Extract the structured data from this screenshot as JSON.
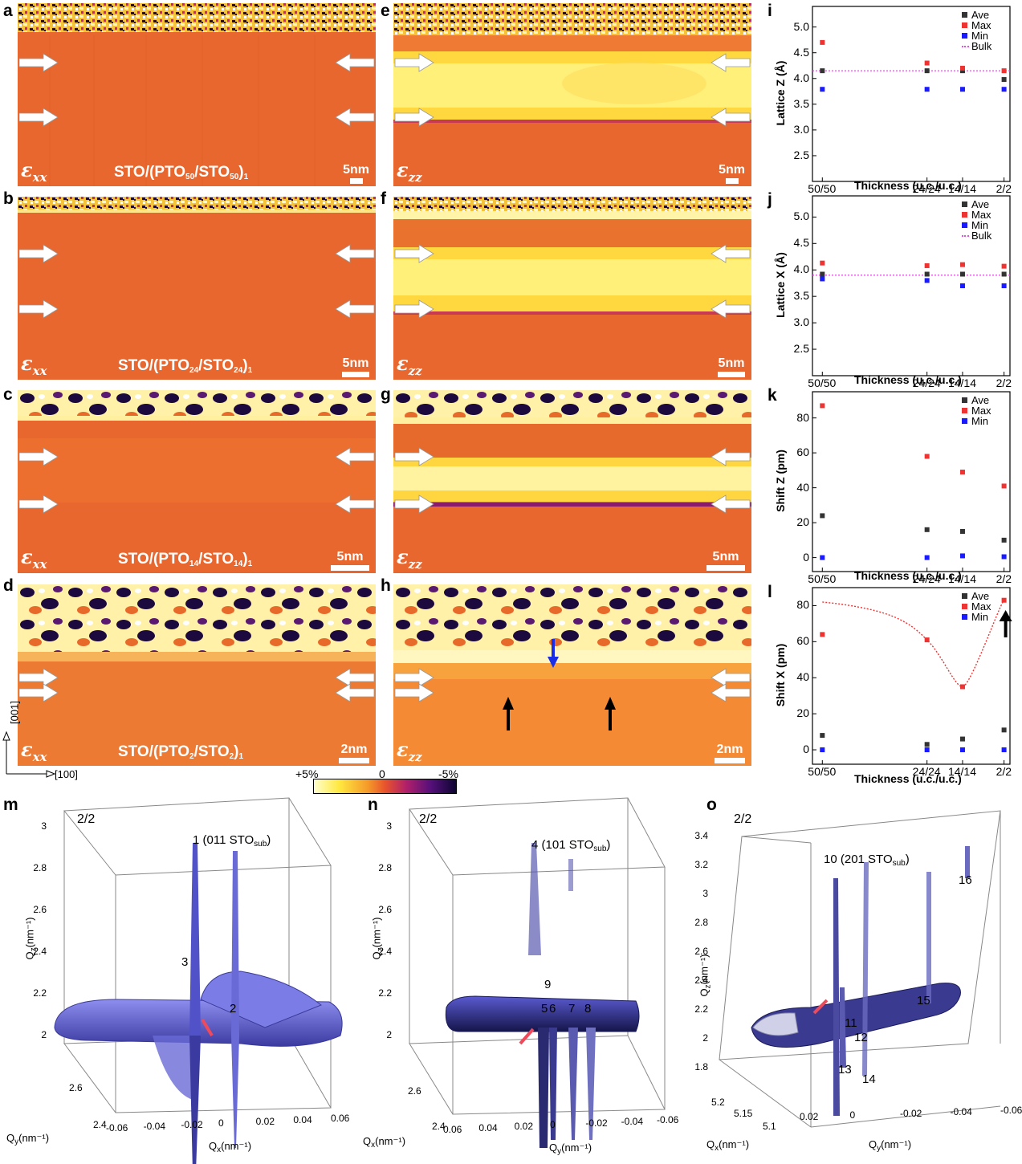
{
  "panels": {
    "a": "a",
    "b": "b",
    "c": "c",
    "d": "d",
    "e": "e",
    "f": "f",
    "g": "g",
    "h": "h",
    "i": "i",
    "j": "j",
    "k": "k",
    "l": "l",
    "m": "m",
    "n": "n",
    "o": "o"
  },
  "strain": {
    "xx": "ε",
    "xx_sub": "xx",
    "zz": "ε",
    "zz_sub": "zz"
  },
  "samples": [
    {
      "pre": "STO/(PTO",
      "a": "50",
      "mid": "/STO",
      "b": "50",
      "post": ")",
      "n": "1",
      "scale": "5nm"
    },
    {
      "pre": "STO/(PTO",
      "a": "24",
      "mid": "/STO",
      "b": "24",
      "post": ")",
      "n": "1",
      "scale": "5nm"
    },
    {
      "pre": "STO/(PTO",
      "a": "14",
      "mid": "/STO",
      "b": "14",
      "post": ")",
      "n": "1",
      "scale": "5nm"
    },
    {
      "pre": "STO/(PTO",
      "a": "2",
      "mid": "/STO",
      "b": "2",
      "post": ")",
      "n": "1",
      "scale": "2nm"
    }
  ],
  "axes_dir": {
    "vertical": "[001]",
    "horizontal": "[100]"
  },
  "colorbar": {
    "left": "+5%",
    "mid": "0",
    "right": "-5%"
  },
  "chart_data": [
    {
      "panel": "i",
      "type": "scatter",
      "xlabel": "Thickness (u.c./u.c.)",
      "ylabel": "Lattice Z (Å)",
      "categories": [
        "50/50",
        "24/24",
        "14/14",
        "2/2"
      ],
      "ylim": [
        2.0,
        5.4
      ],
      "yticks": [
        "2.5",
        "3.0",
        "3.5",
        "4.0",
        "4.5",
        "5.0"
      ],
      "series": [
        {
          "name": "Ave",
          "color": "#333333",
          "values": [
            4.15,
            4.15,
            4.15,
            3.98
          ]
        },
        {
          "name": "Max",
          "color": "#ee3333",
          "values": [
            4.7,
            4.3,
            4.2,
            4.15
          ]
        },
        {
          "name": "Min",
          "color": "#1a1aff",
          "values": [
            3.79,
            3.79,
            3.79,
            3.79
          ]
        }
      ],
      "bulk": {
        "name": "Bulk",
        "value": 4.15,
        "color": "#e64fe6"
      }
    },
    {
      "panel": "j",
      "type": "scatter",
      "xlabel": "Thickness (u.c./u.c.)",
      "ylabel": "Lattice X (Å)",
      "categories": [
        "50/50",
        "24/24",
        "14/14",
        "2/2"
      ],
      "ylim": [
        2.0,
        5.4
      ],
      "yticks": [
        "2.5",
        "3.0",
        "3.5",
        "4.0",
        "4.5",
        "5.0"
      ],
      "series": [
        {
          "name": "Ave",
          "color": "#333333",
          "values": [
            3.92,
            3.92,
            3.92,
            3.92
          ]
        },
        {
          "name": "Max",
          "color": "#ee3333",
          "values": [
            4.13,
            4.08,
            4.1,
            4.07
          ]
        },
        {
          "name": "Min",
          "color": "#1a1aff",
          "values": [
            3.83,
            3.8,
            3.7,
            3.7
          ]
        }
      ],
      "bulk": {
        "name": "Bulk",
        "value": 3.9,
        "color": "#e64fe6"
      }
    },
    {
      "panel": "k",
      "type": "scatter",
      "xlabel": "Thickness (u.c./u.c.)",
      "ylabel": "Shift Z (pm)",
      "categories": [
        "50/50",
        "24/24",
        "14/14",
        "2/2"
      ],
      "ylim": [
        -8,
        95
      ],
      "yticks": [
        "0",
        "20",
        "40",
        "60",
        "80"
      ],
      "series": [
        {
          "name": "Ave",
          "color": "#333333",
          "values": [
            24,
            16,
            15,
            10
          ]
        },
        {
          "name": "Max",
          "color": "#ee3333",
          "values": [
            87,
            58,
            49,
            41
          ]
        },
        {
          "name": "Min",
          "color": "#1a1aff",
          "values": [
            0,
            0,
            1,
            0.5
          ]
        }
      ]
    },
    {
      "panel": "l",
      "type": "scatter",
      "xlabel": "Thickness (u.c./u.c.)",
      "ylabel": "Shift X (pm)",
      "categories": [
        "50/50",
        "24/24",
        "14/14",
        "2/2"
      ],
      "ylim": [
        -8,
        90
      ],
      "yticks": [
        "0",
        "20",
        "40",
        "60",
        "80"
      ],
      "series": [
        {
          "name": "Ave",
          "color": "#333333",
          "values": [
            8,
            3,
            6,
            11
          ]
        },
        {
          "name": "Max",
          "color": "#ee3333",
          "values": [
            64,
            61,
            35,
            83
          ]
        },
        {
          "name": "Min",
          "color": "#1a1aff",
          "values": [
            0,
            0,
            0,
            0
          ]
        }
      ],
      "trend": {
        "color": "#ee3333"
      }
    }
  ],
  "rsm": [
    {
      "panel": "m",
      "tag": "2/2",
      "zlabel": "Q",
      "zsub": "z",
      "unit": "(nm⁻¹)",
      "zticks": [
        "3",
        "2.8",
        "2.6",
        "2.4",
        "2.2",
        "2"
      ],
      "xlabel": "Q",
      "xsub": "x",
      "xticks": [
        "-0.06",
        "-0.04",
        "-0.02",
        "0",
        "0.02",
        "0.04",
        "0.06"
      ],
      "ylabel": "Q",
      "ysub": "y",
      "yticks": [
        "2.6",
        "2.4"
      ],
      "peak_main": "1 (011 STO",
      "peak_sub": "sub",
      "peak_close": ")",
      "peaks": [
        "2",
        "3"
      ]
    },
    {
      "panel": "n",
      "tag": "2/2",
      "zlabel": "Q",
      "zsub": "z",
      "unit": "(nm⁻¹)",
      "zticks": [
        "3",
        "2.8",
        "2.6",
        "2.4",
        "2.2",
        "2"
      ],
      "xlabel": "Q",
      "xsub": "y",
      "xticks": [
        "0.06",
        "0.04",
        "0.02",
        "0",
        "-0.02",
        "-0.04",
        "-0.06"
      ],
      "ylabel": "Q",
      "ysub": "x",
      "yticks": [
        "2.6",
        "2.4"
      ],
      "peak_main": "4 (101 STO",
      "peak_sub": "sub",
      "peak_close": ")",
      "peaks": [
        "9",
        "5",
        "6",
        "7",
        "8"
      ]
    },
    {
      "panel": "o",
      "tag": "2/2",
      "zlabel": "Q",
      "zsub": "z",
      "unit": "(nm⁻¹)",
      "zticks": [
        "3.4",
        "3.2",
        "3",
        "2.8",
        "2.6",
        "2.4",
        "2.2",
        "2",
        "1.8"
      ],
      "xlabel": "Q",
      "xsub": "y",
      "xticks": [
        "0.02",
        "0",
        "-0.02",
        "-0.04",
        "-0.06"
      ],
      "ylabel": "Q",
      "ysub": "x",
      "yticks": [
        "5.2",
        "5.15",
        "5.1"
      ],
      "peak_main": "10 (201 STO",
      "peak_sub": "sub",
      "peak_close": ")",
      "peaks": [
        "16",
        "15",
        "11",
        "12",
        "13",
        "14"
      ]
    }
  ]
}
